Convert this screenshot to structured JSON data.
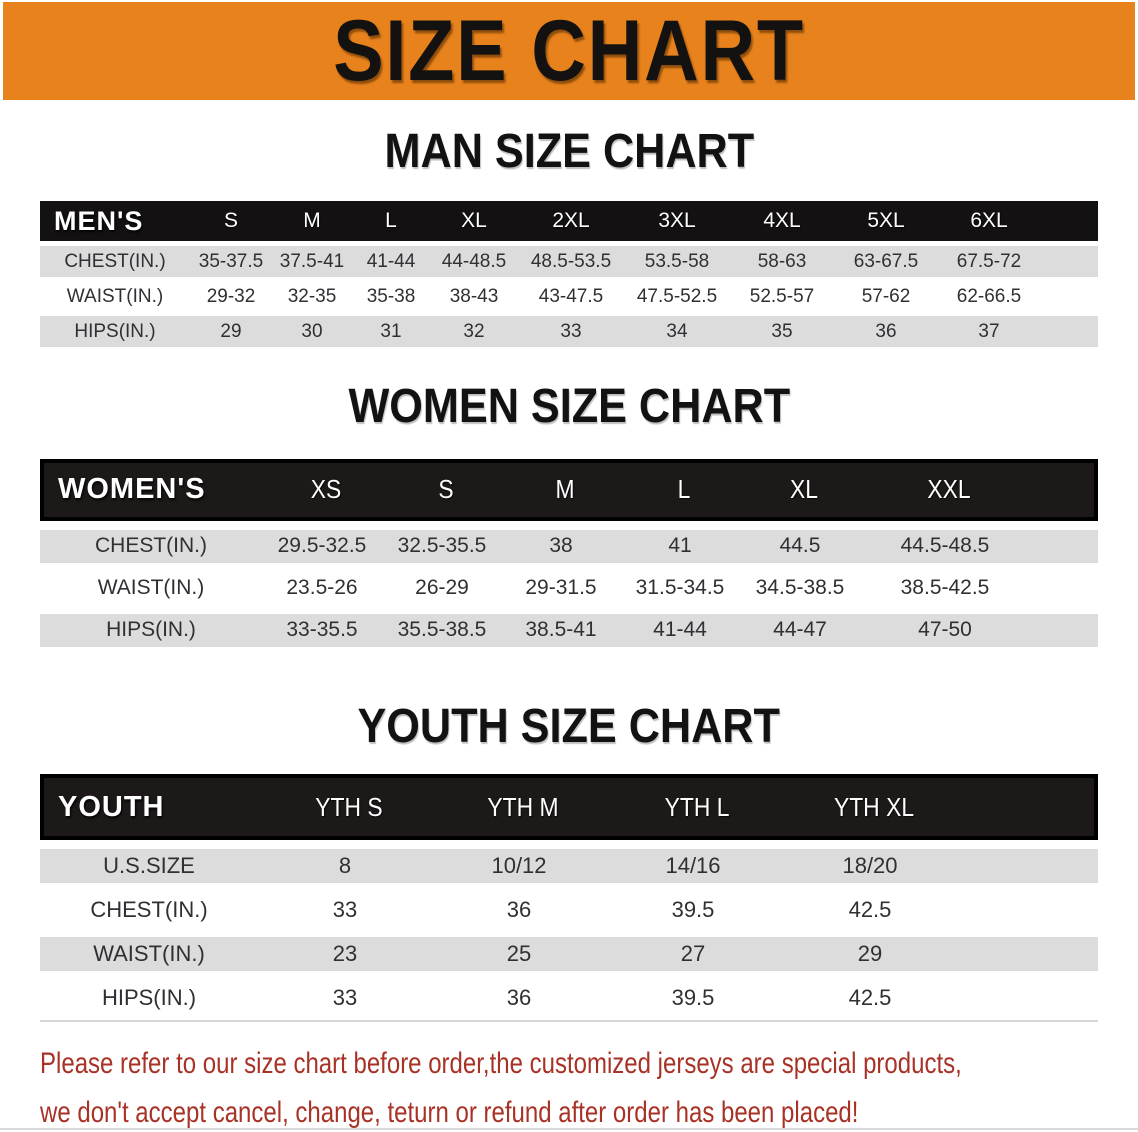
{
  "banner": {
    "title": "SIZE CHART",
    "bg_color": "#E8821C"
  },
  "colors": {
    "banner_orange": "#E8821C",
    "header_black": "#1d1918",
    "stripe_gray": "#DCDCDC",
    "notice_red": "#A93226"
  },
  "sections": [
    {
      "heading": "MAN SIZE CHART",
      "table": {
        "header_label": "MEN'S",
        "columns": [
          "S",
          "M",
          "L",
          "XL",
          "2XL",
          "3XL",
          "4XL",
          "5XL",
          "6XL"
        ],
        "rows": [
          {
            "label": "CHEST(IN.)",
            "values": [
              "35-37.5",
              "37.5-41",
              "41-44",
              "44-48.5",
              "48.5-53.5",
              "53.5-58",
              "58-63",
              "63-67.5",
              "67.5-72"
            ]
          },
          {
            "label": "WAIST(IN.)",
            "values": [
              "29-32",
              "32-35",
              "35-38",
              "38-43",
              "43-47.5",
              "47.5-52.5",
              "52.5-57",
              "57-62",
              "62-66.5"
            ]
          },
          {
            "label": "HIPS(IN.)",
            "values": [
              "29",
              "30",
              "31",
              "32",
              "33",
              "34",
              "35",
              "36",
              "37"
            ]
          }
        ]
      }
    },
    {
      "heading": "WOMEN SIZE CHART",
      "table": {
        "header_label": "WOMEN'S",
        "columns": [
          "XS",
          "S",
          "M",
          "L",
          "XL",
          "XXL"
        ],
        "rows": [
          {
            "label": "CHEST(IN.)",
            "values": [
              "29.5-32.5",
              "32.5-35.5",
              "38",
              "41",
              "44.5",
              "44.5-48.5"
            ]
          },
          {
            "label": "WAIST(IN.)",
            "values": [
              "23.5-26",
              "26-29",
              "29-31.5",
              "31.5-34.5",
              "34.5-38.5",
              "38.5-42.5"
            ]
          },
          {
            "label": "HIPS(IN.)",
            "values": [
              "33-35.5",
              "35.5-38.5",
              "38.5-41",
              "41-44",
              "44-47",
              "47-50"
            ]
          }
        ]
      }
    },
    {
      "heading": "YOUTH SIZE CHART",
      "table": {
        "header_label": "YOUTH",
        "columns": [
          "YTH S",
          "YTH M",
          "YTH L",
          "YTH XL"
        ],
        "rows": [
          {
            "label": "U.S.SIZE",
            "values": [
              "8",
              "10/12",
              "14/16",
              "18/20"
            ]
          },
          {
            "label": "CHEST(IN.)",
            "values": [
              "33",
              "36",
              "39.5",
              "42.5"
            ]
          },
          {
            "label": "WAIST(IN.)",
            "values": [
              "23",
              "25",
              "27",
              "29"
            ]
          },
          {
            "label": "HIPS(IN.)",
            "values": [
              "33",
              "36",
              "39.5",
              "42.5"
            ]
          }
        ]
      }
    }
  ],
  "footer": {
    "lines": [
      "Please refer to our size chart before order,the customized jerseys are special products,",
      "we don't accept cancel, change, teturn or refund after order has been placed!"
    ]
  }
}
